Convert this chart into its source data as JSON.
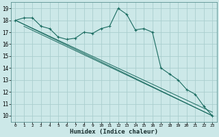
{
  "xlabel": "Humidex (Indice chaleur)",
  "bg_color": "#cce8e8",
  "grid_color": "#aacece",
  "line_color": "#1a6b60",
  "xlim": [
    -0.5,
    23.5
  ],
  "ylim": [
    9.5,
    19.5
  ],
  "xticks": [
    0,
    1,
    2,
    3,
    4,
    5,
    6,
    7,
    8,
    9,
    10,
    11,
    12,
    13,
    14,
    15,
    16,
    17,
    18,
    19,
    20,
    21,
    22,
    23
  ],
  "yticks": [
    10,
    11,
    12,
    13,
    14,
    15,
    16,
    17,
    18,
    19
  ],
  "line1_x": [
    0,
    1,
    2,
    3,
    4,
    5,
    6,
    7,
    8,
    9,
    10,
    11,
    12,
    13,
    14,
    15,
    16,
    17,
    18,
    19,
    20,
    21,
    22,
    23
  ],
  "line1_y": [
    18.0,
    18.2,
    18.2,
    17.5,
    17.3,
    16.6,
    16.4,
    16.5,
    17.0,
    16.9,
    17.3,
    17.5,
    19.0,
    18.5,
    17.2,
    17.3,
    17.0,
    14.0,
    13.5,
    13.0,
    12.2,
    11.8,
    10.8,
    10.0
  ],
  "regression_lines": [
    {
      "x0": 0,
      "y0": 18.0,
      "x1": 23,
      "y1": 10.3
    },
    {
      "x0": 0,
      "y0": 18.0,
      "x1": 23,
      "y1": 10.0
    },
    {
      "x0": 1,
      "y0": 17.5,
      "x1": 23,
      "y1": 10.0
    }
  ]
}
